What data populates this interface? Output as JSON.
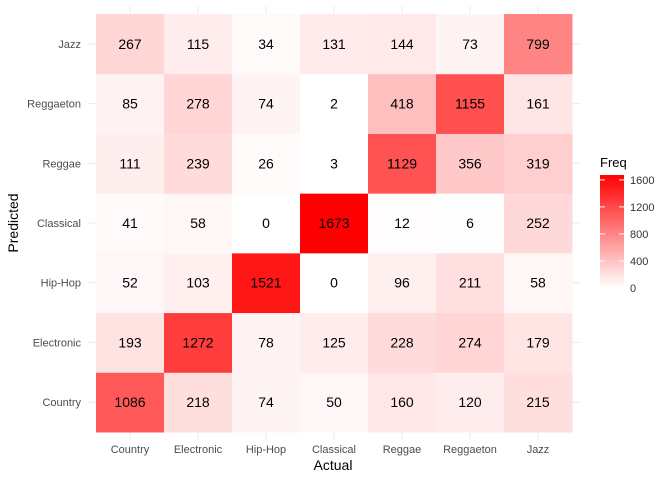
{
  "chart_data": {
    "type": "heatmap",
    "title": "",
    "xlabel": "Actual",
    "ylabel": "Predicted",
    "x_categories": [
      "Country",
      "Electronic",
      "Hip-Hop",
      "Classical",
      "Reggae",
      "Reggaeton",
      "Jazz"
    ],
    "y_categories": [
      "Country",
      "Electronic",
      "Hip-Hop",
      "Classical",
      "Reggae",
      "Reggaeton",
      "Jazz"
    ],
    "values": [
      [
        1086,
        218,
        74,
        50,
        160,
        120,
        215
      ],
      [
        193,
        1272,
        78,
        125,
        228,
        274,
        179
      ],
      [
        52,
        103,
        1521,
        0,
        96,
        211,
        58
      ],
      [
        41,
        58,
        0,
        1673,
        12,
        6,
        252
      ],
      [
        111,
        239,
        26,
        3,
        1129,
        356,
        319
      ],
      [
        85,
        278,
        74,
        2,
        418,
        1155,
        161
      ],
      [
        267,
        115,
        34,
        131,
        144,
        73,
        799
      ]
    ],
    "color_scale": {
      "low": "#ffffff",
      "high": "#ff0000",
      "min": 0,
      "max": 1673
    },
    "legend": {
      "title": "Freq",
      "ticks": [
        0,
        400,
        800,
        1200,
        1600
      ],
      "placement": "right"
    },
    "grid": true
  }
}
